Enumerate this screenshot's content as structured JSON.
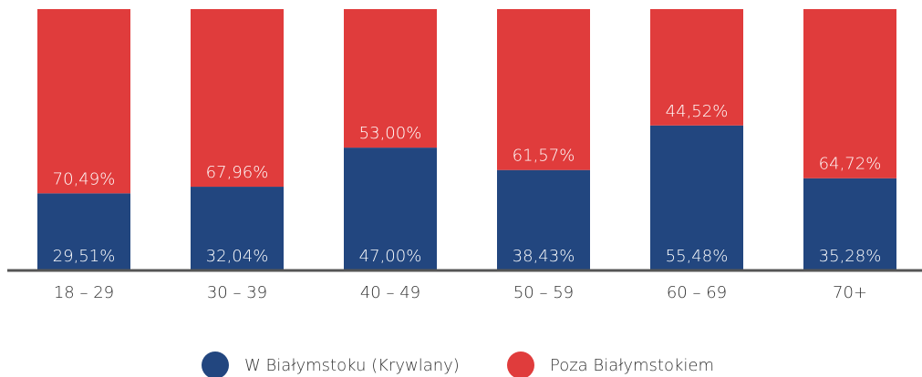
{
  "chart_data": {
    "type": "stacked_bar",
    "categories": [
      "18 – 29",
      "30 – 39",
      "40 – 49",
      "50 – 59",
      "60 – 69",
      "70+"
    ],
    "series": [
      {
        "name": "W Białymstoku (Krywlany)",
        "color": "#22467f",
        "values": [
          29.51,
          32.04,
          47.0,
          38.43,
          55.48,
          35.28
        ],
        "value_labels": [
          "29,51%",
          "32,04%",
          "47,00%",
          "38,43%",
          "55,48%",
          "35,28%"
        ]
      },
      {
        "name": "Poza Białymstokiem",
        "color": "#e03c3c",
        "values": [
          70.49,
          67.96,
          53.0,
          61.57,
          44.52,
          64.72
        ],
        "value_labels": [
          "70,49%",
          "67,96%",
          "53,00%",
          "61,57%",
          "44,52%",
          "64,72%"
        ]
      }
    ],
    "ylim": [
      0,
      100
    ],
    "legend": "bottom"
  }
}
